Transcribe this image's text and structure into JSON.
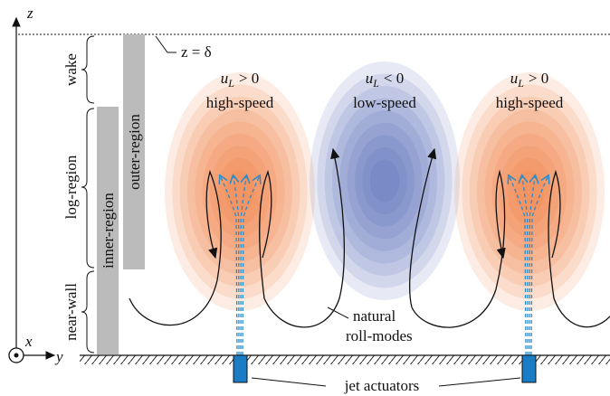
{
  "axes": {
    "z": "z",
    "x": "x",
    "y": "y",
    "delta": "z = δ"
  },
  "regions": {
    "wake": "wake",
    "log": "log-region",
    "near_wall": "near-wall",
    "inner": "inner-region",
    "outer": "outer-region"
  },
  "structures": [
    {
      "symbol": "u",
      "subscript": "L",
      "relation": "> 0",
      "label": "high-speed"
    },
    {
      "symbol": "u",
      "subscript": "L",
      "relation": "< 0",
      "label": "low-speed"
    },
    {
      "symbol": "u",
      "subscript": "L",
      "relation": "> 0",
      "label": "high-speed"
    }
  ],
  "annotations": {
    "roll_1": "natural",
    "roll_2": "roll-modes",
    "jets": "jet actuators"
  }
}
